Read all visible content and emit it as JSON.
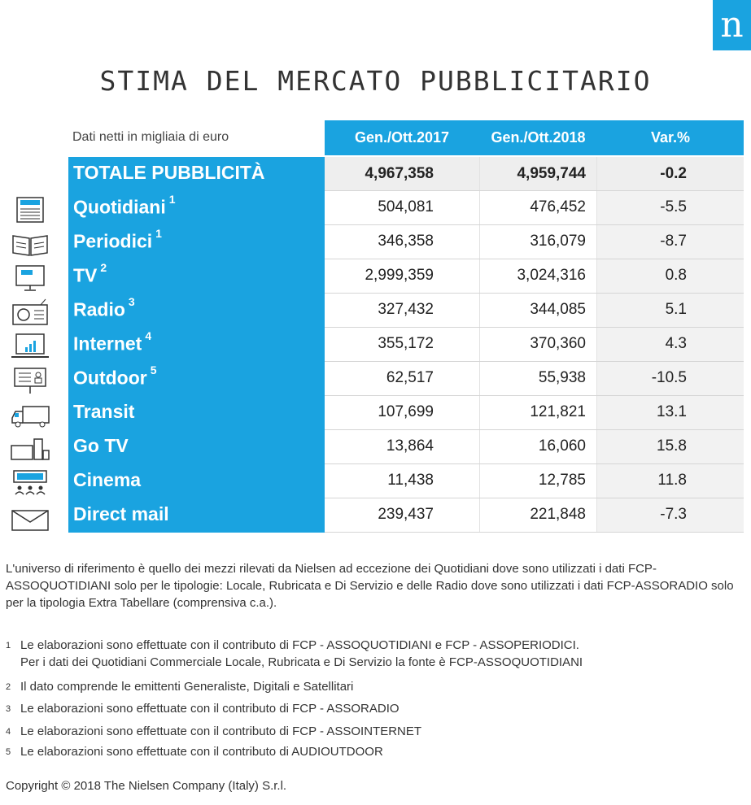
{
  "logo": "n",
  "title": "STIMA DEL MERCATO PUBBLICITARIO",
  "units": "Dati netti in migliaia di euro",
  "headers": [
    "Gen./Ott.2017",
    "Gen./Ott.2018",
    "Var.%"
  ],
  "total": {
    "label": "TOTALE PUBBLICITÀ",
    "v2017": "4,967,358",
    "v2018": "4,959,744",
    "var": "-0.2"
  },
  "rows": [
    {
      "label": "Quotidiani",
      "sup": "1",
      "icon": "newspaper-icon",
      "v2017": "504,081",
      "v2018": "476,452",
      "var": "-5.5"
    },
    {
      "label": "Periodici",
      "sup": "1",
      "icon": "magazine-icon",
      "v2017": "346,358",
      "v2018": "316,079",
      "var": "-8.7"
    },
    {
      "label": "TV",
      "sup": "2",
      "icon": "tv-icon",
      "v2017": "2,999,359",
      "v2018": "3,024,316",
      "var": "0.8"
    },
    {
      "label": "Radio",
      "sup": "3",
      "icon": "radio-icon",
      "v2017": "327,432",
      "v2018": "344,085",
      "var": "5.1"
    },
    {
      "label": "Internet",
      "sup": "4",
      "icon": "laptop-chart-icon",
      "v2017": "355,172",
      "v2018": "370,360",
      "var": "4.3"
    },
    {
      "label": "Outdoor",
      "sup": "5",
      "icon": "billboard-icon",
      "v2017": "62,517",
      "v2018": "55,938",
      "var": "-10.5"
    },
    {
      "label": "Transit",
      "sup": "",
      "icon": "truck-icon",
      "v2017": "107,699",
      "v2018": "121,821",
      "var": "13.1"
    },
    {
      "label": "Go TV",
      "sup": "",
      "icon": "screens-icon",
      "v2017": "13,864",
      "v2018": "16,060",
      "var": "15.8"
    },
    {
      "label": "Cinema",
      "sup": "",
      "icon": "cinema-audience-icon",
      "v2017": "11,438",
      "v2018": "12,785",
      "var": "11.8"
    },
    {
      "label": "Direct mail",
      "sup": "",
      "icon": "envelope-icon",
      "v2017": "239,437",
      "v2018": "221,848",
      "var": "-7.3"
    }
  ],
  "paragraph": "L'universo di riferimento è quello dei mezzi rilevati da Nielsen ad eccezione dei Quotidiani dove sono utilizzati i dati FCP-ASSOQUOTIDIANI solo per le tipologie: Locale, Rubricata e Di Servizio e delle Radio dove sono utilizzati i dati FCP-ASSORADIO  solo per la tipologia Extra Tabellare (comprensiva c.a.).",
  "notes": [
    {
      "n": "1",
      "text": "Le elaborazioni sono effettuate con il contributo di FCP - ASSOQUOTIDIANI e FCP - ASSOPERIODICI.",
      "text2": "Per i dati dei Quotidiani Commerciale Locale, Rubricata e Di Servizio la fonte è  FCP-ASSOQUOTIDIANI"
    },
    {
      "n": "2",
      "text": "Il dato comprende le emittenti Generaliste, Digitali e Satellitari"
    },
    {
      "n": "3",
      "text": "Le elaborazioni sono effettuate con il contributo di FCP - ASSORADIO"
    },
    {
      "n": "4",
      "text": "Le elaborazioni sono effettuate con il contributo di FCP - ASSOINTERNET"
    },
    {
      "n": "5",
      "text": "Le elaborazioni sono effettuate con il contributo di AUDIOUTDOOR"
    }
  ],
  "copyright": "Copyright © 2018 The Nielsen Company (Italy) S.r.l."
}
